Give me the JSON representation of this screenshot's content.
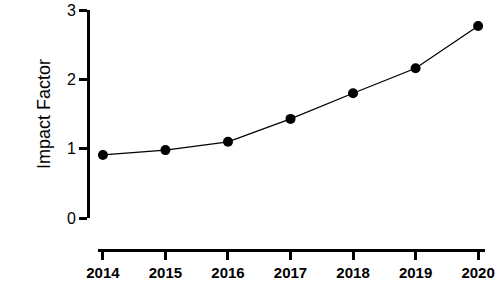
{
  "chart_data": {
    "type": "line",
    "x": [
      2014,
      2015,
      2016,
      2017,
      2018,
      2019,
      2020
    ],
    "values": [
      0.91,
      0.98,
      1.1,
      1.43,
      1.8,
      2.16,
      2.77
    ],
    "ylabel": "Impact Factor",
    "xlim": [
      2013.92,
      2020.11
    ],
    "xticks": [
      2014,
      2015,
      2016,
      2017,
      2018,
      2019,
      2020
    ],
    "ylim": [
      0,
      3
    ],
    "yticks": [
      0,
      1,
      2,
      3
    ],
    "color": "#000000",
    "marker": "circle",
    "grid": false
  }
}
